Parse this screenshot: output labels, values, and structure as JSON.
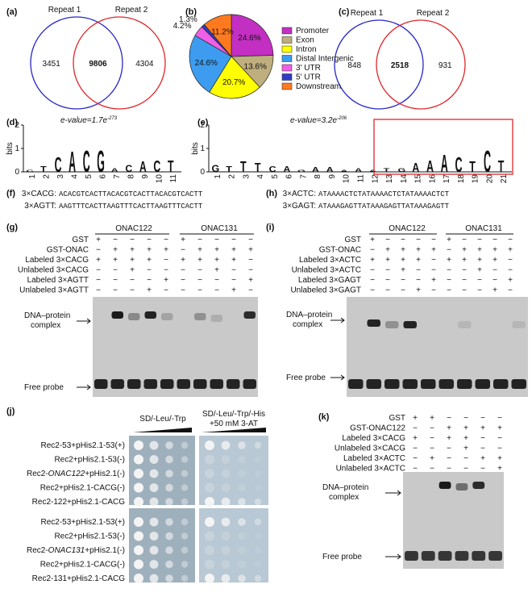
{
  "chart_data": {
    "type": "pie",
    "label": "(b)",
    "categories": [
      "Promoter",
      "Exon",
      "Intron",
      "Distal Intergenic",
      "3' UTR",
      "5' UTR",
      "Downstream"
    ],
    "values": [
      24.6,
      13.6,
      20.7,
      24.6,
      4.2,
      1.3,
      11.2
    ],
    "value_labels": [
      "24.6%",
      "13.6%",
      "20.7%",
      "24.6%",
      "4.2%",
      "1.3%",
      "11.2%"
    ],
    "colors": [
      "#c22fc2",
      "#bfae7e",
      "#ffff00",
      "#3d9cf0",
      "#f15fe6",
      "#2f3cc4",
      "#ff7a1f"
    ]
  },
  "panels": {
    "a": {
      "label": "(a)",
      "set1": "Repeat 1",
      "set2": "Repeat 2",
      "only1": "3451",
      "both": "9806",
      "only2": "4304"
    },
    "c": {
      "label": "(c)",
      "set1": "Repeat 1",
      "set2": "Repeat 2",
      "only1": "848",
      "both": "2518",
      "only2": "931"
    },
    "d": {
      "label": "(d)",
      "evalue": "e-value=1.7e",
      "exponent": "-273",
      "ylabel": "bits",
      "ylim": [
        0,
        2
      ],
      "yticks": [
        0,
        1,
        2
      ],
      "positions": [
        1,
        2,
        3,
        4,
        5,
        6,
        7,
        8,
        9,
        10,
        11
      ],
      "letters": [
        "C",
        "T",
        "C",
        "A",
        "C",
        "G",
        "A",
        "C",
        "A",
        "C",
        "T"
      ],
      "heights": [
        0.2,
        0.5,
        1.3,
        1.8,
        1.9,
        1.9,
        0.3,
        0.6,
        0.9,
        1.0,
        1.0
      ]
    },
    "e": {
      "label": "(e)",
      "evalue": "e-value=3.2e",
      "exponent": "-206",
      "ylabel": "bits",
      "ylim": [
        0,
        2
      ],
      "yticks": [
        0,
        1,
        2
      ],
      "positions": [
        1,
        2,
        3,
        4,
        5,
        6,
        7,
        8,
        9,
        10,
        11,
        12,
        13,
        14,
        15,
        16,
        17,
        18,
        19,
        20,
        21
      ],
      "letters": [
        "G",
        "T",
        "T",
        "T",
        "C",
        "A",
        "G",
        "A",
        "A",
        "A",
        "A",
        "A",
        "T",
        "G",
        "A",
        "A",
        "A",
        "C",
        "T",
        "C",
        "T"
      ],
      "heights": [
        0.6,
        0.5,
        0.9,
        0.8,
        0.5,
        0.5,
        0.2,
        0.4,
        0.4,
        0.2,
        0.3,
        0.2,
        0.3,
        0.3,
        0.8,
        1.0,
        1.5,
        1.3,
        0.9,
        1.9,
        1.0
      ]
    },
    "f": {
      "label": "(f)",
      "lines": [
        [
          "3×CACG:",
          "ACACGTCACTTACACGTCACTTACACGTCACTT"
        ],
        [
          "3×AGTT:",
          "AAGTTTCACTTAAGTTTCACTTAAGTTTCACTT"
        ]
      ]
    },
    "h": {
      "label": "(h)",
      "lines": [
        [
          "3×ACTC:",
          "ATAAAACTCTATAAAACTCTATAAAACTCT"
        ],
        [
          "3×GAGT:",
          "ATAAAGAGTTATAAAGAGTTATAAAGAGTT"
        ]
      ]
    },
    "g": {
      "label": "(g)",
      "groups": [
        "ONAC122",
        "ONAC131"
      ],
      "rows": [
        {
          "name": "GST",
          "signs": [
            "+",
            "−",
            "−",
            "−",
            "−",
            "+",
            "−",
            "−",
            "−",
            "−"
          ]
        },
        {
          "name": "GST-ONAC",
          "signs": [
            "−",
            "+",
            "+",
            "+",
            "+",
            "−",
            "+",
            "+",
            "+",
            "+"
          ]
        },
        {
          "name": "Labeled 3×CACG",
          "signs": [
            "+",
            "+",
            "+",
            "+",
            "−",
            "+",
            "+",
            "+",
            "+",
            "−"
          ]
        },
        {
          "name": "Unlabeled 3×CACG",
          "signs": [
            "−",
            "−",
            "+",
            "−",
            "−",
            "−",
            "−",
            "+",
            "−",
            "−"
          ]
        },
        {
          "name": "Labeled 3×AGTT",
          "signs": [
            "−",
            "−",
            "−",
            "−",
            "+",
            "−",
            "−",
            "−",
            "−",
            "+"
          ]
        },
        {
          "name": "Unlabeled 3×AGTT",
          "signs": [
            "−",
            "−",
            "−",
            "+",
            "−",
            "−",
            "−",
            "−",
            "+",
            "−"
          ]
        }
      ],
      "complex": [
        "DNA–protein",
        "complex"
      ],
      "free": "Free probe"
    },
    "i": {
      "label": "(i)",
      "groups": [
        "ONAC122",
        "ONAC131"
      ],
      "rows": [
        {
          "name": "GST",
          "signs": [
            "+",
            "−",
            "−",
            "−",
            "−",
            "+",
            "−",
            "−",
            "−",
            "−"
          ]
        },
        {
          "name": "GST-ONAC",
          "signs": [
            "−",
            "+",
            "+",
            "+",
            "+",
            "−",
            "+",
            "+",
            "+",
            "+"
          ]
        },
        {
          "name": "Labeled 3×ACTC",
          "signs": [
            "+",
            "+",
            "+",
            "+",
            "−",
            "+",
            "+",
            "+",
            "+",
            "−"
          ]
        },
        {
          "name": "Unlabeled 3×ACTC",
          "signs": [
            "−",
            "−",
            "+",
            "−",
            "−",
            "−",
            "−",
            "+",
            "−",
            "−"
          ]
        },
        {
          "name": "Labeled 3×GAGT",
          "signs": [
            "−",
            "−",
            "−",
            "−",
            "+",
            "−",
            "−",
            "−",
            "−",
            "+"
          ]
        },
        {
          "name": "Unlabeled 3×GAGT",
          "signs": [
            "−",
            "−",
            "−",
            "+",
            "−",
            "−",
            "−",
            "−",
            "+",
            "−"
          ]
        }
      ],
      "complex": [
        "DNA–protein",
        "complex"
      ],
      "free": "Free probe"
    },
    "j": {
      "label": "(j)",
      "media": [
        "SD/-Leu/-Trp",
        "SD/-Leu/-Trp/-His",
        "+50 mM 3-AT"
      ],
      "rows": [
        [
          "Rec2-53+pHis2.1-53(+)"
        ],
        [
          "Rec2+pHis2.1-53(-)"
        ],
        [
          "Rec2-",
          "ONAC122",
          "+pHis2.1(-)"
        ],
        [
          "Rec2+pHis2.1-CACG(-)"
        ],
        [
          "Rec2-122+pHis2.1-CACG"
        ],
        [
          "Rec2-53+pHis2.1-53(+)"
        ],
        [
          "Rec2+pHis2.1-53(-)"
        ],
        [
          "Rec2-",
          "ONAC131",
          "+pHis2.1(-)"
        ],
        [
          "Rec2+pHis2.1-CACG(-)"
        ],
        [
          "Rec2-131+pHis2.1-CACG"
        ]
      ]
    },
    "k": {
      "label": "(k)",
      "rows": [
        {
          "name": "GST",
          "signs": [
            "+",
            "+",
            "−",
            "−",
            "−",
            "−"
          ]
        },
        {
          "name": "GST-ONAC122",
          "signs": [
            "−",
            "−",
            "+",
            "+",
            "+",
            "+"
          ]
        },
        {
          "name": "Labeled 3×CACG",
          "signs": [
            "+",
            "−",
            "+",
            "+",
            "−",
            "−"
          ]
        },
        {
          "name": "Unlabeled 3×CACG",
          "signs": [
            "−",
            "−",
            "−",
            "+",
            "−",
            "−"
          ]
        },
        {
          "name": "Labeled 3×ACTC",
          "signs": [
            "−",
            "+",
            "−",
            "−",
            "+",
            "+"
          ]
        },
        {
          "name": "Unlabeled 3×ACTC",
          "signs": [
            "−",
            "−",
            "−",
            "−",
            "−",
            "+"
          ]
        }
      ],
      "complex": [
        "DNA–protein",
        "complex"
      ],
      "free": "Free probe"
    }
  }
}
